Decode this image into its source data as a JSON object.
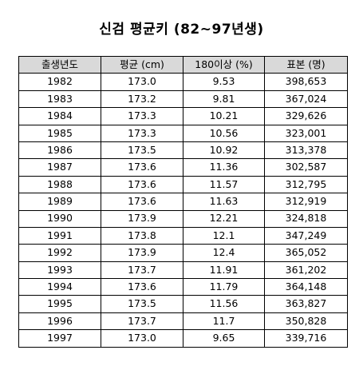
{
  "title": "신검 평균키 (82~97년생)",
  "table": {
    "headers": [
      "출생년도",
      "평균 (cm)",
      "180이상 (%)",
      "표본 (명)"
    ],
    "rows": [
      [
        "1982",
        "173.0",
        "9.53",
        "398,653"
      ],
      [
        "1983",
        "173.2",
        "9.81",
        "367,024"
      ],
      [
        "1984",
        "173.3",
        "10.21",
        "329,626"
      ],
      [
        "1985",
        "173.3",
        "10.56",
        "323,001"
      ],
      [
        "1986",
        "173.5",
        "10.92",
        "313,378"
      ],
      [
        "1987",
        "173.6",
        "11.36",
        "302,587"
      ],
      [
        "1988",
        "173.6",
        "11.57",
        "312,795"
      ],
      [
        "1989",
        "173.6",
        "11.63",
        "312,919"
      ],
      [
        "1990",
        "173.9",
        "12.21",
        "324,818"
      ],
      [
        "1991",
        "173.8",
        "12.1",
        "347,249"
      ],
      [
        "1992",
        "173.9",
        "12.4",
        "365,052"
      ],
      [
        "1993",
        "173.7",
        "11.91",
        "361,202"
      ],
      [
        "1994",
        "173.6",
        "11.79",
        "364,148"
      ],
      [
        "1995",
        "173.5",
        "11.56",
        "363,827"
      ],
      [
        "1996",
        "173.7",
        "11.7",
        "350,828"
      ],
      [
        "1997",
        "173.0",
        "9.65",
        "339,716"
      ]
    ]
  },
  "colors": {
    "header_background": "#d9d9d9",
    "border": "#000000",
    "text": "#000000",
    "background": "#ffffff"
  }
}
